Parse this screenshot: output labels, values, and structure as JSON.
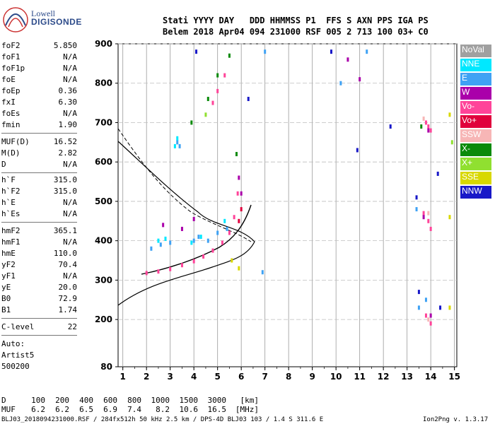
{
  "logo": {
    "line1": "Lowell",
    "line2": "DIGISONDE"
  },
  "header": {
    "line1": "Stati YYYY DAY   DDD HHMMSS P1  FFS S AXN PPS IGA PS",
    "line2": "Belem 2018 Apr04 094 231000 RSF 005 2 713 100 03+ C0"
  },
  "params": [
    {
      "name": "foF2",
      "value": "5.850"
    },
    {
      "name": "foF1",
      "value": "N/A"
    },
    {
      "name": "foF1p",
      "value": "N/A"
    },
    {
      "name": "foE",
      "value": "N/A"
    },
    {
      "name": "foEp",
      "value": "0.36"
    },
    {
      "name": "fxI",
      "value": "6.30"
    },
    {
      "name": "foEs",
      "value": "N/A"
    },
    {
      "name": "fmin",
      "value": "1.90"
    },
    {
      "name": "MUF(D)",
      "value": "16.52"
    },
    {
      "name": "M(D)",
      "value": "2.82"
    },
    {
      "name": "D",
      "value": "N/A"
    },
    {
      "name": "h`F",
      "value": "315.0"
    },
    {
      "name": "h`F2",
      "value": "315.0"
    },
    {
      "name": "h`E",
      "value": "N/A"
    },
    {
      "name": "h`Es",
      "value": "N/A"
    },
    {
      "name": "hmF2",
      "value": "365.1"
    },
    {
      "name": "hmF1",
      "value": "N/A"
    },
    {
      "name": "hmE",
      "value": "110.0"
    },
    {
      "name": "yF2",
      "value": "70.4"
    },
    {
      "name": "yF1",
      "value": "N/A"
    },
    {
      "name": "yE",
      "value": "20.0"
    },
    {
      "name": "B0",
      "value": "72.9"
    },
    {
      "name": "B1",
      "value": "1.74"
    },
    {
      "name": "C-level",
      "value": "22"
    }
  ],
  "auto": {
    "line1": "Auto:",
    "line2": "Artist5",
    "line3": "500200"
  },
  "legend": [
    {
      "label": "NoVal",
      "color": "#a0a0a0"
    },
    {
      "label": "NNE",
      "color": "#00e8ff"
    },
    {
      "label": "E",
      "color": "#3fa2f4"
    },
    {
      "label": "W",
      "color": "#aa00aa"
    },
    {
      "label": "Vo-",
      "color": "#ff4499"
    },
    {
      "label": "Vo+",
      "color": "#e0003c"
    },
    {
      "label": "SSW",
      "color": "#f7b6b6"
    },
    {
      "label": "X-",
      "color": "#0a8a0a"
    },
    {
      "label": "X+",
      "color": "#90e030"
    },
    {
      "label": "SSE",
      "color": "#d8d800"
    },
    {
      "label": "NNW",
      "color": "#1818c8"
    }
  ],
  "bottom": {
    "d_label": "D",
    "d_values": [
      "100",
      "200",
      "400",
      "600",
      "800",
      "1000",
      "1500",
      "3000",
      "[km]"
    ],
    "muf_label": "MUF",
    "muf_values": [
      "6.2",
      "6.2",
      "6.5",
      "6.9",
      "7.4",
      "8.2",
      "10.6",
      "16.5",
      "[MHz]"
    ]
  },
  "footer": {
    "left": "BLJ03_2018094231000.RSF / 284fx512h 50 kHz 2.5 km / DPS-4D BLJ03 103 / 1.4 S 311.6 E",
    "right": "Ion2Png v. 1.3.17"
  },
  "chart_data": {
    "type": "scatter",
    "x_ticks": [
      "1",
      "2",
      "3",
      "4",
      "5",
      "6",
      "7",
      "8",
      "9",
      "10",
      "11",
      "12",
      "13",
      "14",
      "15"
    ],
    "y_ticks": [
      "80",
      "200",
      "300",
      "400",
      "500",
      "600",
      "700",
      "800",
      "900"
    ],
    "xlim": [
      0.8,
      15.1
    ],
    "ylim": [
      80,
      900
    ],
    "grid": true,
    "legend_position": "right",
    "series": [
      {
        "name": "Vo-",
        "color": "#ff4499",
        "points": [
          [
            2.0,
            318
          ],
          [
            2.5,
            322
          ],
          [
            3.0,
            328
          ],
          [
            3.5,
            338
          ],
          [
            4.0,
            348
          ],
          [
            4.4,
            360
          ],
          [
            4.8,
            375
          ],
          [
            5.2,
            395
          ],
          [
            5.5,
            420
          ],
          [
            5.7,
            460
          ],
          [
            5.85,
            520
          ],
          [
            4.8,
            750
          ],
          [
            5.0,
            780
          ],
          [
            5.3,
            820
          ],
          [
            13.8,
            700
          ],
          [
            13.9,
            690
          ],
          [
            14.0,
            680
          ],
          [
            13.7,
            470
          ],
          [
            13.9,
            450
          ],
          [
            14.0,
            430
          ],
          [
            13.8,
            210
          ],
          [
            14.0,
            190
          ]
        ]
      },
      {
        "name": "E",
        "color": "#3fa2f4",
        "points": [
          [
            2.2,
            380
          ],
          [
            2.6,
            390
          ],
          [
            3.0,
            395
          ],
          [
            3.3,
            650
          ],
          [
            3.4,
            640
          ],
          [
            4.0,
            400
          ],
          [
            4.2,
            410
          ],
          [
            4.6,
            400
          ],
          [
            5.0,
            420
          ],
          [
            5.4,
            430
          ],
          [
            6.9,
            320
          ],
          [
            7.0,
            880
          ],
          [
            10.2,
            800
          ],
          [
            11.3,
            880
          ],
          [
            13.4,
            480
          ],
          [
            13.5,
            230
          ],
          [
            13.8,
            250
          ]
        ]
      },
      {
        "name": "NNE",
        "color": "#00e8ff",
        "points": [
          [
            2.5,
            400
          ],
          [
            2.8,
            405
          ],
          [
            3.2,
            640
          ],
          [
            3.3,
            660
          ],
          [
            3.9,
            395
          ],
          [
            4.3,
            410
          ],
          [
            5.3,
            450
          ]
        ]
      },
      {
        "name": "W",
        "color": "#aa00aa",
        "points": [
          [
            2.7,
            440
          ],
          [
            3.5,
            430
          ],
          [
            4.0,
            455
          ],
          [
            5.9,
            560
          ],
          [
            6.0,
            520
          ],
          [
            10.5,
            860
          ],
          [
            11.0,
            810
          ],
          [
            13.7,
            460
          ],
          [
            13.9,
            680
          ],
          [
            14.0,
            210
          ]
        ]
      },
      {
        "name": "X-",
        "color": "#0a8a0a",
        "points": [
          [
            3.9,
            700
          ],
          [
            4.6,
            760
          ],
          [
            5.0,
            820
          ],
          [
            5.5,
            870
          ],
          [
            5.8,
            620
          ],
          [
            13.6,
            690
          ]
        ]
      },
      {
        "name": "SSE",
        "color": "#d8d800",
        "points": [
          [
            5.6,
            350
          ],
          [
            5.9,
            330
          ],
          [
            14.8,
            720
          ],
          [
            14.8,
            460
          ],
          [
            14.8,
            230
          ]
        ]
      },
      {
        "name": "NNW",
        "color": "#1818c8",
        "points": [
          [
            4.1,
            880
          ],
          [
            6.3,
            760
          ],
          [
            9.8,
            880
          ],
          [
            10.9,
            630
          ],
          [
            12.3,
            690
          ],
          [
            13.4,
            510
          ],
          [
            13.5,
            270
          ],
          [
            14.4,
            230
          ],
          [
            14.3,
            570
          ]
        ]
      },
      {
        "name": "SSW",
        "color": "#f7b6b6",
        "points": [
          [
            13.7,
            710
          ],
          [
            13.9,
            470
          ],
          [
            13.9,
            200
          ]
        ]
      },
      {
        "name": "Vo+",
        "color": "#e0003c",
        "points": [
          [
            5.9,
            450
          ],
          [
            6.0,
            480
          ]
        ]
      },
      {
        "name": "X+",
        "color": "#90e030",
        "points": [
          [
            14.9,
            650
          ],
          [
            4.5,
            720
          ]
        ]
      }
    ]
  }
}
